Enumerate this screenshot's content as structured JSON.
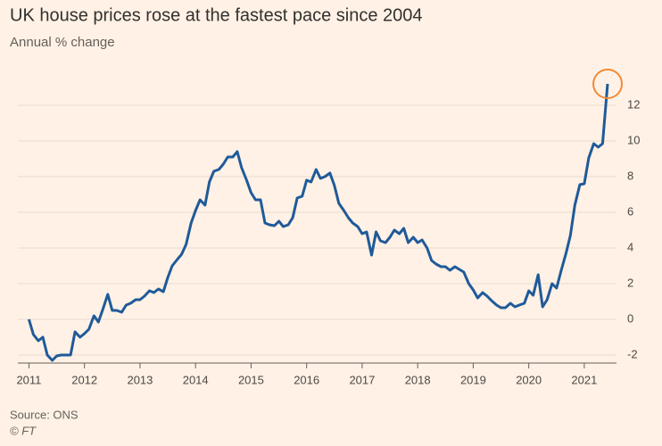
{
  "chart_data": {
    "type": "line",
    "title": "UK house prices rose at the fastest pace since 2004",
    "subtitle": "Annual % change",
    "source": "Source: ONS",
    "credit": "© FT",
    "color": "#1f5a99",
    "highlight_color": "#f08a3a",
    "grid": true,
    "xlim": [
      2010.8,
      2021.58
    ],
    "ylim": [
      -2.45,
      13.9
    ],
    "xticks": [
      2011,
      2012,
      2013,
      2014,
      2015,
      2016,
      2017,
      2018,
      2019,
      2020,
      2021
    ],
    "yticks": [
      -2,
      0,
      2,
      4,
      6,
      8,
      10,
      12
    ],
    "x": [
      2011.0,
      2011.08,
      2011.17,
      2011.25,
      2011.33,
      2011.42,
      2011.5,
      2011.58,
      2011.67,
      2011.75,
      2011.83,
      2011.92,
      2012.0,
      2012.08,
      2012.17,
      2012.25,
      2012.33,
      2012.42,
      2012.5,
      2012.58,
      2012.67,
      2012.75,
      2012.83,
      2012.92,
      2013.0,
      2013.08,
      2013.17,
      2013.25,
      2013.33,
      2013.42,
      2013.5,
      2013.58,
      2013.67,
      2013.75,
      2013.83,
      2013.92,
      2014.0,
      2014.08,
      2014.17,
      2014.25,
      2014.33,
      2014.42,
      2014.5,
      2014.58,
      2014.67,
      2014.75,
      2014.83,
      2014.92,
      2015.0,
      2015.08,
      2015.17,
      2015.25,
      2015.33,
      2015.42,
      2015.5,
      2015.58,
      2015.67,
      2015.75,
      2015.83,
      2015.92,
      2016.0,
      2016.08,
      2016.17,
      2016.25,
      2016.33,
      2016.42,
      2016.5,
      2016.58,
      2016.67,
      2016.75,
      2016.83,
      2016.92,
      2017.0,
      2017.08,
      2017.17,
      2017.25,
      2017.33,
      2017.42,
      2017.5,
      2017.58,
      2017.67,
      2017.75,
      2017.83,
      2017.92,
      2018.0,
      2018.08,
      2018.17,
      2018.25,
      2018.33,
      2018.42,
      2018.5,
      2018.58,
      2018.67,
      2018.75,
      2018.83,
      2018.92,
      2019.0,
      2019.08,
      2019.17,
      2019.25,
      2019.33,
      2019.42,
      2019.5,
      2019.58,
      2019.67,
      2019.75,
      2019.83,
      2019.92,
      2020.0,
      2020.08,
      2020.17,
      2020.25,
      2020.33,
      2020.42,
      2020.5,
      2020.58,
      2020.67,
      2020.75,
      2020.83,
      2020.92,
      2021.0,
      2021.08,
      2021.17,
      2021.25,
      2021.33,
      2021.42
    ],
    "values": [
      0,
      -0.85,
      -1.2,
      -1.0,
      -2.0,
      -2.3,
      -2.05,
      -2.0,
      -2.0,
      -2.0,
      -0.7,
      -1.0,
      -0.8,
      -0.55,
      0.2,
      -0.15,
      0.55,
      1.4,
      0.5,
      0.5,
      0.4,
      0.8,
      0.9,
      1.1,
      1.1,
      1.3,
      1.6,
      1.5,
      1.7,
      1.55,
      2.35,
      3.0,
      3.35,
      3.65,
      4.2,
      5.4,
      6.1,
      6.7,
      6.4,
      7.7,
      8.3,
      8.4,
      8.7,
      9.1,
      9.1,
      9.4,
      8.5,
      7.8,
      7.1,
      6.7,
      6.7,
      5.4,
      5.3,
      5.25,
      5.5,
      5.2,
      5.3,
      5.7,
      6.8,
      6.9,
      7.8,
      7.7,
      8.4,
      7.9,
      8.0,
      8.2,
      7.5,
      6.5,
      6.1,
      5.7,
      5.4,
      5.2,
      4.8,
      4.9,
      3.6,
      4.9,
      4.4,
      4.3,
      4.6,
      5.0,
      4.8,
      5.1,
      4.3,
      4.6,
      4.3,
      4.45,
      4.0,
      3.3,
      3.1,
      2.95,
      2.95,
      2.75,
      2.95,
      2.8,
      2.65,
      2.0,
      1.65,
      1.2,
      1.5,
      1.3,
      1.05,
      0.8,
      0.65,
      0.65,
      0.9,
      0.7,
      0.8,
      0.9,
      1.6,
      1.35,
      2.5,
      0.7,
      1.1,
      2.0,
      1.75,
      2.7,
      3.7,
      4.7,
      6.4,
      7.55,
      7.6,
      9.05,
      9.85,
      9.65,
      9.85,
      13.2
    ]
  }
}
